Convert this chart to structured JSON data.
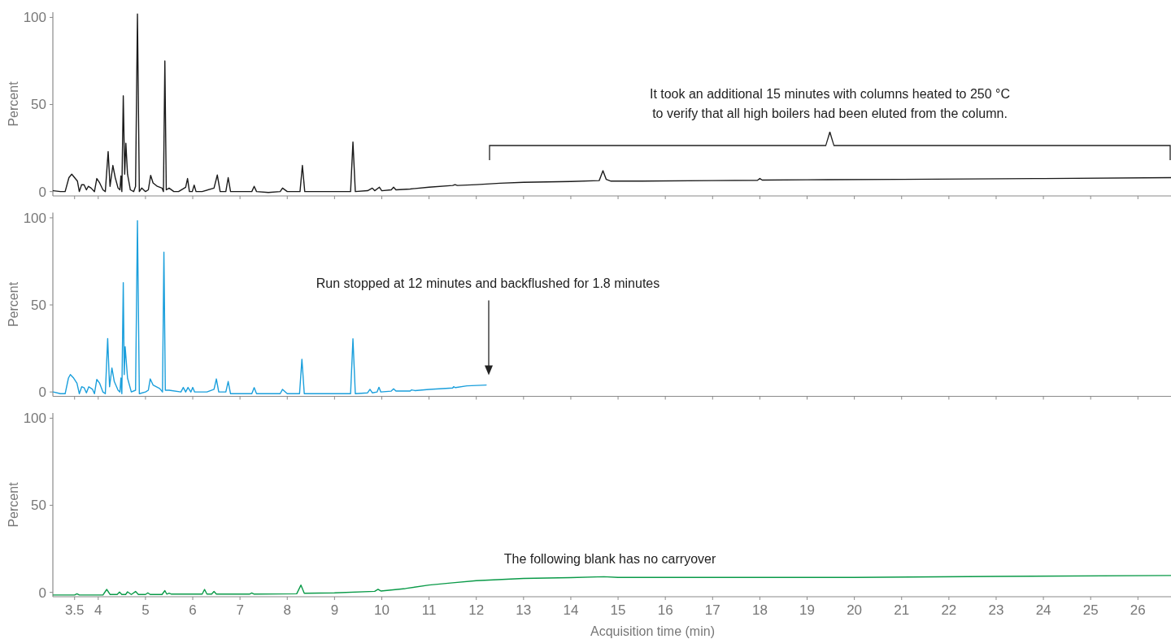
{
  "chart_data": [
    {
      "type": "line",
      "ylabel": "Percent",
      "xlim": [
        3.04,
        26.7
      ],
      "ylim": [
        -2.5,
        103
      ],
      "xticks": [
        3.5,
        4,
        5,
        6,
        7,
        8,
        9,
        10,
        11,
        12,
        13,
        14,
        15,
        16,
        17,
        18,
        19,
        20,
        21,
        22,
        23,
        24,
        25,
        26
      ],
      "yticks": [
        0,
        50,
        100
      ],
      "tick_labels": "y",
      "grid": false,
      "line_style": "solid",
      "marker": "none",
      "annotations": [
        "It took an additional 15 minutes with columns heated to 250 °C\nto verify that all high boilers had been eluted from the column."
      ],
      "series": [
        {
          "color": "#1a1a1a",
          "x": [
            3.05,
            3.2,
            3.3,
            3.38,
            3.44,
            3.5,
            3.56,
            3.6,
            3.65,
            3.7,
            3.75,
            3.79,
            3.85,
            3.92,
            3.97,
            4.03,
            4.1,
            4.15,
            4.21,
            4.25,
            4.31,
            4.36,
            4.42,
            4.46,
            4.48,
            4.5,
            4.53,
            4.56,
            4.585,
            4.62,
            4.68,
            4.75,
            4.79,
            4.83,
            4.87,
            4.92,
            5.0,
            5.06,
            5.11,
            5.16,
            5.25,
            5.35,
            5.38,
            5.41,
            5.44,
            5.5,
            5.6,
            5.7,
            5.85,
            5.89,
            5.93,
            5.99,
            6.03,
            6.07,
            6.2,
            6.45,
            6.52,
            6.58,
            6.7,
            6.75,
            6.8,
            7.0,
            7.25,
            7.3,
            7.35,
            7.6,
            7.85,
            7.9,
            8.0,
            8.27,
            8.32,
            8.37,
            8.6,
            9.0,
            9.34,
            9.39,
            9.44,
            9.7,
            9.8,
            9.85,
            9.95,
            10.0,
            10.2,
            10.25,
            10.3,
            10.6,
            11.0,
            11.5,
            11.55,
            11.6,
            12.0,
            12.5,
            13.0,
            14.0,
            14.6,
            14.68,
            14.75,
            14.85,
            15.5,
            17.0,
            17.95,
            18.0,
            18.05,
            19,
            21,
            24,
            26.7
          ],
          "values": [
            0.5,
            0,
            0,
            8,
            10,
            8,
            6,
            0,
            4,
            3.9,
            1,
            3,
            2,
            0,
            7.5,
            5,
            1,
            0,
            23,
            3,
            15,
            8,
            2,
            1,
            9,
            0,
            55,
            10,
            27.7,
            10,
            1,
            0,
            3,
            102,
            0,
            2,
            0,
            1,
            9.3,
            5,
            3,
            2,
            0,
            75,
            1,
            2,
            0,
            0,
            2.5,
            7.5,
            0,
            0,
            3.7,
            0,
            0,
            2,
            9.5,
            0,
            0,
            8,
            0,
            0,
            0,
            3,
            0,
            -0.5,
            0,
            2,
            0,
            0,
            15,
            0,
            0,
            0,
            0,
            28.5,
            0,
            0.5,
            2,
            0.5,
            2.5,
            0.5,
            1,
            2.5,
            1,
            1.5,
            2.5,
            3.5,
            4,
            3.5,
            4,
            4.8,
            5.3,
            5.8,
            6.3,
            12,
            7,
            6,
            6,
            6.3,
            6.5,
            7.5,
            6.6,
            6.8,
            7,
            7.5,
            8
          ]
        }
      ]
    },
    {
      "type": "line",
      "ylabel": "Percent",
      "xlim": [
        3.04,
        26.7
      ],
      "ylim": [
        -2.5,
        103
      ],
      "xticks": [
        3.5,
        4,
        5,
        6,
        7,
        8,
        9,
        10,
        11,
        12,
        13,
        14,
        15,
        16,
        17,
        18,
        19,
        20,
        21,
        22,
        23,
        24,
        25,
        26
      ],
      "yticks": [
        0,
        50,
        100
      ],
      "tick_labels": "y",
      "grid": false,
      "line_style": "solid",
      "marker": "none",
      "annotations": [
        "Run stopped at 12 minutes and backflushed for 1.8 minutes"
      ],
      "series": [
        {
          "color": "#1a9fdc",
          "x": [
            3.05,
            3.2,
            3.3,
            3.37,
            3.41,
            3.48,
            3.55,
            3.6,
            3.65,
            3.7,
            3.75,
            3.8,
            3.88,
            3.92,
            3.97,
            4.03,
            4.1,
            4.15,
            4.2,
            4.24,
            4.29,
            4.34,
            4.42,
            4.46,
            4.48,
            4.5,
            4.53,
            4.55,
            4.57,
            4.62,
            4.7,
            4.79,
            4.83,
            4.87,
            5.0,
            5.06,
            5.1,
            5.16,
            5.3,
            5.36,
            5.39,
            5.42,
            5.5,
            5.75,
            5.8,
            5.85,
            5.9,
            5.96,
            6.0,
            6.04,
            6.3,
            6.45,
            6.5,
            6.55,
            6.7,
            6.75,
            6.8,
            7.0,
            7.25,
            7.3,
            7.35,
            7.85,
            7.9,
            8.0,
            8.26,
            8.31,
            8.36,
            8.7,
            9.0,
            9.34,
            9.39,
            9.44,
            9.7,
            9.75,
            9.8,
            9.9,
            9.94,
            9.98,
            10.2,
            10.25,
            10.3,
            10.6,
            10.63,
            10.7,
            11.0,
            11.5,
            11.52,
            11.56,
            11.8,
            12.21
          ],
          "values": [
            0,
            -1,
            -1,
            8,
            10,
            8,
            5,
            -1,
            3,
            2.5,
            -0.5,
            3,
            1.5,
            -1,
            7.2,
            5,
            0,
            -1,
            30.7,
            3,
            13.8,
            6,
            1,
            0,
            8,
            -1,
            62.8,
            10,
            26,
            8,
            0,
            1,
            98.3,
            -1,
            0,
            1,
            7.5,
            4,
            2,
            0,
            80.3,
            1,
            1,
            0,
            2.6,
            0,
            2.6,
            0,
            2.6,
            0,
            0,
            1.5,
            7.5,
            0,
            0,
            6,
            -1,
            -1,
            -1,
            2.5,
            -1,
            -1,
            1.5,
            -1,
            -1,
            18.8,
            -1,
            -1,
            -1,
            -1,
            30.5,
            -1,
            -0.5,
            1.5,
            -0.5,
            0,
            2.7,
            0,
            0.5,
            1.8,
            0.5,
            0.5,
            1.2,
            0.8,
            1.5,
            2.3,
            3,
            2.5,
            3.5,
            4
          ]
        }
      ]
    },
    {
      "type": "line",
      "ylabel": "Percent",
      "xlabel": "Acquisition time (min)",
      "xlim": [
        3.04,
        26.7
      ],
      "ylim": [
        -2.5,
        103
      ],
      "xticks": [
        3.5,
        4,
        5,
        6,
        7,
        8,
        9,
        10,
        11,
        12,
        13,
        14,
        15,
        16,
        17,
        18,
        19,
        20,
        21,
        22,
        23,
        24,
        25,
        26
      ],
      "yticks": [
        0,
        50,
        100
      ],
      "grid": false,
      "line_style": "solid",
      "marker": "none",
      "annotations": [
        "The following blank has no carryover"
      ],
      "series": [
        {
          "color": "#0a9a48",
          "x": [
            3.05,
            3.5,
            3.55,
            3.6,
            4.1,
            4.18,
            4.25,
            4.4,
            4.45,
            4.5,
            4.58,
            4.62,
            4.7,
            4.79,
            4.85,
            5.0,
            5.05,
            5.1,
            5.35,
            5.41,
            5.45,
            5.5,
            5.55,
            6.2,
            6.25,
            6.3,
            6.4,
            6.45,
            6.5,
            7.2,
            7.25,
            7.3,
            8.2,
            8.29,
            8.36,
            9.0,
            9.85,
            9.92,
            9.98,
            10.5,
            11.0,
            11.5,
            12.0,
            13.0,
            14.0,
            14.7,
            15,
            17,
            20,
            23,
            26.7
          ],
          "values": [
            -1.5,
            -1.5,
            -0.8,
            -1.5,
            -1.5,
            1.7,
            -1.2,
            -1.2,
            0.2,
            -1.2,
            -1.2,
            0.3,
            -1.2,
            0.5,
            -1.2,
            -1.2,
            -0.3,
            -1.2,
            -1.2,
            1,
            -1,
            -0.5,
            -1,
            -1,
            1.7,
            -1,
            -1,
            0.5,
            -1,
            -1,
            -0.3,
            -1,
            -0.8,
            4.2,
            -0.5,
            -0.3,
            0.6,
            1.8,
            0.8,
            2.2,
            4.2,
            5.5,
            6.7,
            8,
            8.5,
            9,
            8.6,
            8.6,
            8.6,
            9.2,
            9.7
          ]
        }
      ]
    }
  ]
}
